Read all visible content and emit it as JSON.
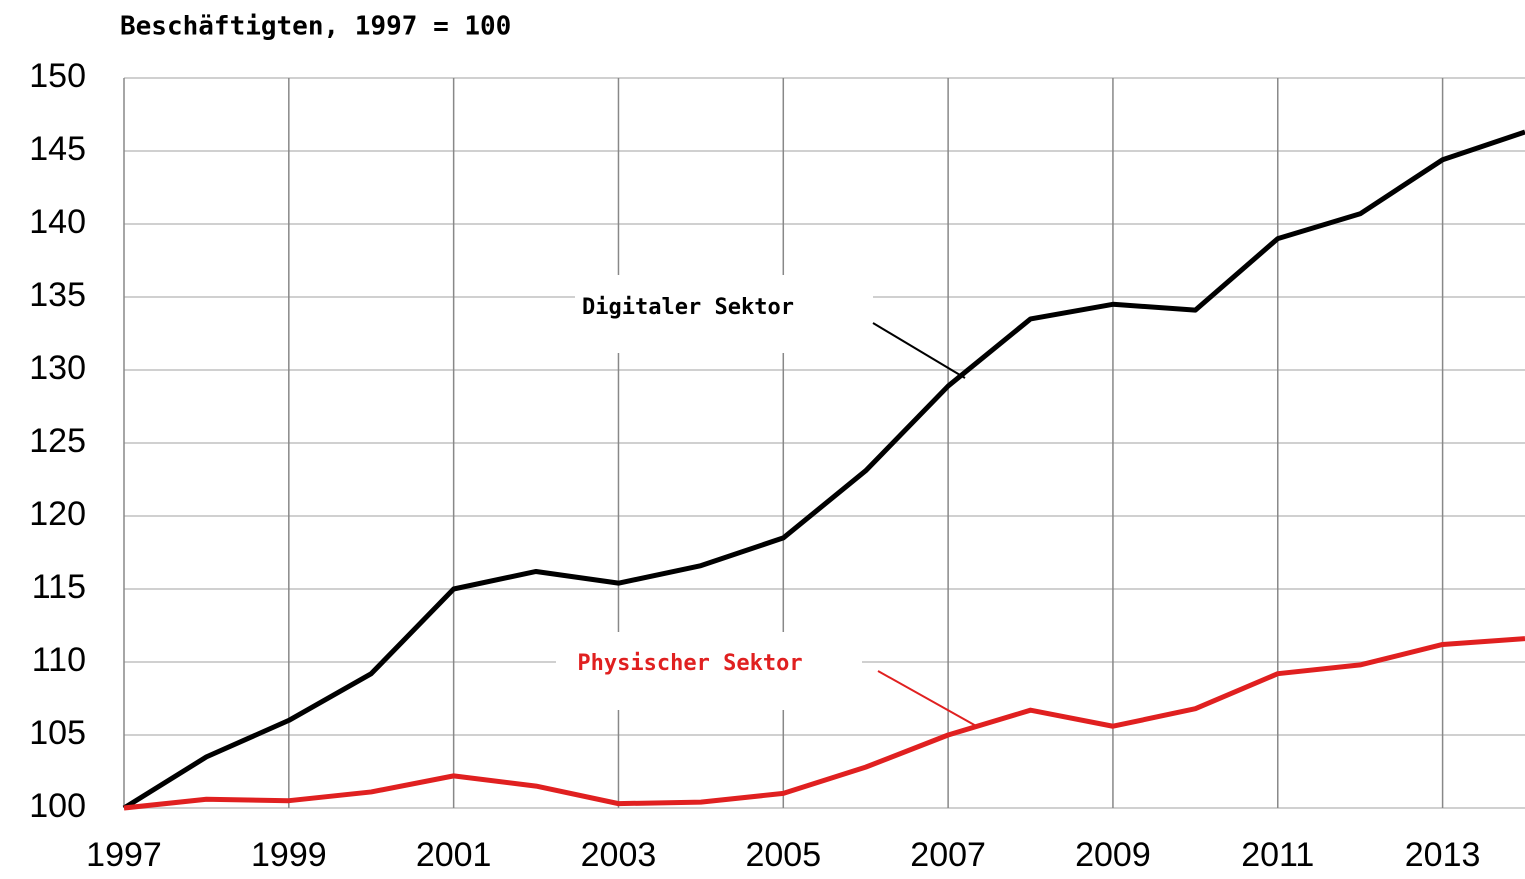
{
  "chart_data": {
    "type": "line",
    "title": "Beschäftigten, 1997 = 100",
    "x": [
      1997,
      1998,
      1999,
      2000,
      2001,
      2002,
      2003,
      2004,
      2005,
      2006,
      2007,
      2008,
      2009,
      2010,
      2011,
      2012,
      2013,
      2014
    ],
    "series": [
      {
        "name": "Digitaler Sektor",
        "color": "#000000",
        "values": [
          100,
          103.5,
          106,
          109.2,
          115,
          116.2,
          115.4,
          116.6,
          118.5,
          123.1,
          128.9,
          133.5,
          134.5,
          134.1,
          139,
          140.7,
          144.4,
          146.3
        ]
      },
      {
        "name": "Physischer Sektor",
        "color": "#e02020",
        "values": [
          100,
          100.6,
          100.5,
          101.1,
          102.2,
          101.5,
          100.3,
          100.4,
          101,
          102.8,
          105,
          106.7,
          105.6,
          106.8,
          109.2,
          109.8,
          111.2,
          111.6
        ]
      }
    ],
    "xlim": [
      1997,
      2014
    ],
    "xticks": [
      1997,
      1999,
      2001,
      2003,
      2005,
      2007,
      2009,
      2011,
      2013
    ],
    "ylim": [
      100,
      150
    ],
    "yticks": [
      100,
      105,
      110,
      115,
      120,
      125,
      130,
      135,
      140,
      145,
      150
    ],
    "grid": true
  }
}
